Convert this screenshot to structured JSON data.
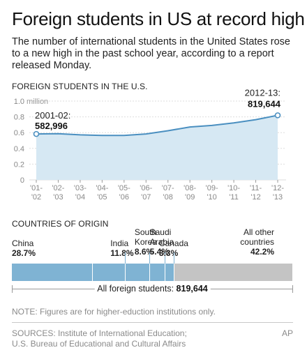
{
  "headline": "Foreign students in US at record high",
  "intro": "The number of international students in the United States rose to a new high in the past school year, according to a report released Monday.",
  "line_section_title": "FOREIGN STUDENTS IN THE U.S.",
  "bar_section_title": "COUNTRIES OF ORIGIN",
  "chart_data": [
    {
      "type": "area",
      "title": "FOREIGN STUDENTS IN THE U.S.",
      "x": [
        "'01-'02",
        "'02-'03",
        "'03-'04",
        "'04-'05",
        "'05-'06",
        "'06-'07",
        "'07-'08",
        "'08-'09",
        "'09-'10",
        "'10-'11",
        "'11-'12",
        "'12-'13"
      ],
      "x_tick_labels": [
        [
          "'01-",
          "'02"
        ],
        [
          "'02-",
          "'03"
        ],
        [
          "'03-",
          "'04"
        ],
        [
          "'04-",
          "'05"
        ],
        [
          "'05-",
          "'06"
        ],
        [
          "'06-",
          "'07"
        ],
        [
          "'07-",
          "'08"
        ],
        [
          "'08-",
          "'09"
        ],
        [
          "'09-",
          "'10"
        ],
        [
          "'10-",
          "'11"
        ],
        [
          "'11-",
          "'12"
        ],
        [
          "'12-",
          "'13"
        ]
      ],
      "series": [
        {
          "values": [
            582996,
            586000,
            572000,
            565000,
            564000,
            583000,
            624000,
            672000,
            691000,
            723000,
            765000,
            819644
          ]
        }
      ],
      "ylim": [
        0,
        1000000
      ],
      "yticks": [
        0,
        200000,
        400000,
        600000,
        800000,
        1000000
      ],
      "ytick_labels": [
        "0",
        "0.2",
        "0.4",
        "0.6",
        "0.8",
        "1.0"
      ],
      "y_unit_label": "million",
      "grid": true,
      "line_color": "#4a8fc0",
      "fill_color": "#d6e8f3",
      "annotations": [
        {
          "label": "2001-02:",
          "value": "582,996"
        },
        {
          "label": "2012-13:",
          "value": "819,644"
        }
      ]
    },
    {
      "type": "bar",
      "title": "COUNTRIES OF ORIGIN",
      "stacked": true,
      "categories": [
        "China",
        "India",
        "South Korea",
        "Saudi Arabia",
        "Canada",
        "All other countries"
      ],
      "values": [
        28.7,
        11.8,
        8.6,
        5.4,
        3.3,
        42.2
      ],
      "value_labels": [
        "28.7%",
        "11.8%",
        "8.6%",
        "5.4%",
        "3.3%",
        "42.2%"
      ],
      "colors": [
        "#7fb3d3",
        "#7fb3d3",
        "#7fb3d3",
        "#7fb3d3",
        "#7fb3d3",
        "#c4c4c4"
      ],
      "total_label": "All foreign students:",
      "total_value": "819,644"
    }
  ],
  "countries": [
    {
      "name_lines": [
        "China"
      ],
      "pct": "28.7%"
    },
    {
      "name_lines": [
        "India"
      ],
      "pct": "11.8%"
    },
    {
      "name_lines": [
        "South",
        "Korea"
      ],
      "pct": "8.6%"
    },
    {
      "name_lines": [
        "Saudi",
        "Arabia"
      ],
      "pct": "5.4%"
    },
    {
      "name_lines": [
        "Canada"
      ],
      "pct": "3.3%"
    },
    {
      "name_lines": [
        "All other",
        "countries"
      ],
      "pct": "42.2%"
    }
  ],
  "total_label": "All foreign students:",
  "total_value": "819,644",
  "note": "NOTE: Figures are for higher-eduction institutions only.",
  "sources_line1": "SOURCES: Institute of International Education;",
  "sources_line2": "U.S. Bureau of Educational and Cultural Affairs",
  "credit": "AP"
}
